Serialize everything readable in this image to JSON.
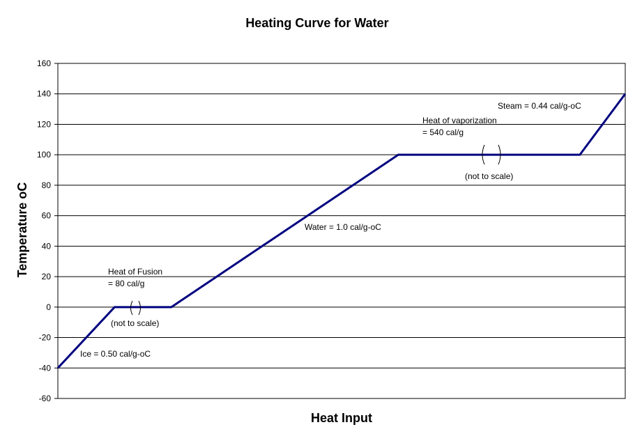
{
  "chart_data": {
    "type": "line",
    "title": "Heating Curve for Water",
    "xlabel": "Heat Input",
    "ylabel": "Temperature oC",
    "ylim": [
      -60,
      160
    ],
    "yticks": [
      160,
      140,
      120,
      100,
      80,
      60,
      40,
      20,
      0,
      -20,
      -40,
      -60
    ],
    "grid": true,
    "line_color": "#000080",
    "series": [
      {
        "points": [
          {
            "x": 0,
            "y": -40
          },
          {
            "x": 1,
            "y": 0
          },
          {
            "x": 2,
            "y": 0
          },
          {
            "x": 6,
            "y": 100
          },
          {
            "x": 9.2,
            "y": 100
          },
          {
            "x": 10,
            "y": 140
          }
        ]
      }
    ],
    "annotations": {
      "fusion": [
        "Heat of Fusion",
        "= 80 cal/g"
      ],
      "fusion_note": "(not to scale)",
      "ice": "Ice  = 0.50 cal/g-oC",
      "water": "Water = 1.0 cal/g-oC",
      "vaporization": [
        "Heat of vaporization",
        "= 540 cal/g"
      ],
      "vaporization_note": "(not to scale)",
      "steam": "Steam = 0.44 cal/g-oC"
    }
  }
}
